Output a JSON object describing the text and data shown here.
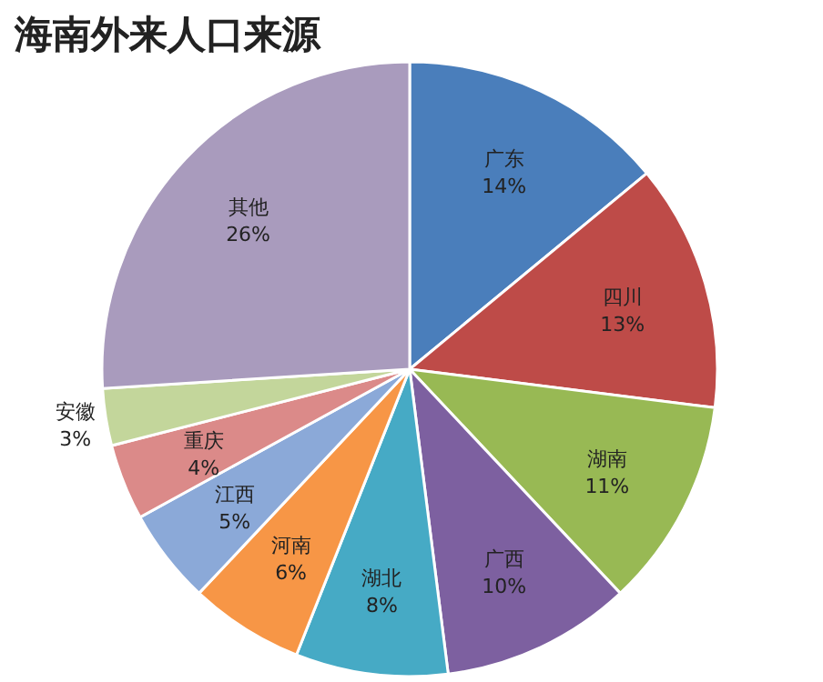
{
  "chart_data": {
    "type": "pie",
    "title": "海南外来人口来源",
    "categories": [
      "广东",
      "四川",
      "湖南",
      "广西",
      "湖北",
      "河南",
      "江西",
      "重庆",
      "安徽",
      "其他"
    ],
    "values": [
      14,
      13,
      11,
      10,
      8,
      6,
      5,
      4,
      3,
      26
    ],
    "value_labels": [
      "14%",
      "13%",
      "11%",
      "10%",
      "8%",
      "6%",
      "5%",
      "4%",
      "3%",
      "26%"
    ],
    "colors": [
      "#4a7ebb",
      "#be4b48",
      "#98b954",
      "#7d60a0",
      "#46aac5",
      "#f79646",
      "#8ba9d8",
      "#db8a89",
      "#c3d69b",
      "#a99bbd"
    ]
  }
}
